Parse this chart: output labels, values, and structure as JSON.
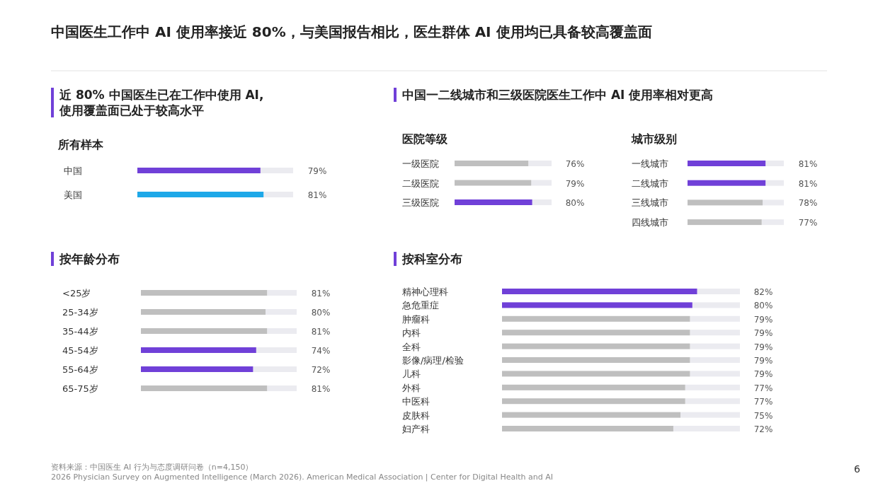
{
  "chart_data": [
    {
      "type": "other",
      "title": "中国医生工作中 AI 使用率接近 80%，与美国报告相比，医生群体 AI 使用均已具备较高覆盖面",
      "annotations": [
        "资料来源：中国医生 AI 行为与态度调研问卷（n=4,150）",
        "2026 Physician Survey on Augmented Intelligence (March 2026). American Medical Association  |  Center for Digital Health and AI",
        "6"
      ]
    },
    {
      "type": "bar",
      "orientation": "horizontal",
      "title": "近 80% 中国医生已在工作中使用 AI,\n使用覆盖面已处于较高水平",
      "subtitle": "所有样本",
      "categories": [
        "中国",
        "美国"
      ],
      "values": [
        79,
        81
      ],
      "colors": [
        "#7040d8",
        "#1ea8e8"
      ],
      "value_labels": [
        "79%",
        "81%"
      ],
      "xlim": [
        0,
        100
      ],
      "tick_labels": "y"
    },
    {
      "type": "bar",
      "orientation": "horizontal",
      "title": "中国一二线城市和三级医院医生工作中 AI 使用率相对更高",
      "subtitle": "医院等级",
      "categories": [
        "一级医院",
        "二级医院",
        "三级医院"
      ],
      "values": [
        76,
        79,
        80
      ],
      "colors": [
        "#bfbfbf",
        "#bfbfbf",
        "#7040d8"
      ],
      "value_labels": [
        "76%",
        "79%",
        "80%"
      ],
      "xlim": [
        0,
        100
      ],
      "tick_labels": "y"
    },
    {
      "type": "bar",
      "orientation": "horizontal",
      "subtitle": "城市级别",
      "categories": [
        "一线城市",
        "二线城市",
        "三线城市",
        "四线城市"
      ],
      "values": [
        81,
        81,
        78,
        77
      ],
      "colors": [
        "#7040d8",
        "#7040d8",
        "#bfbfbf",
        "#bfbfbf"
      ],
      "value_labels": [
        "81%",
        "81%",
        "78%",
        "77%"
      ],
      "xlim": [
        0,
        100
      ],
      "tick_labels": "y"
    },
    {
      "type": "bar",
      "orientation": "horizontal",
      "title": "按年龄分布",
      "categories": [
        "<25岁",
        "25-34岁",
        "35-44岁",
        "45-54岁",
        "55-64岁",
        "65-75岁"
      ],
      "values": [
        81,
        80,
        81,
        74,
        72,
        81
      ],
      "colors": [
        "#bfbfbf",
        "#bfbfbf",
        "#bfbfbf",
        "#7040d8",
        "#7040d8",
        "#bfbfbf"
      ],
      "value_labels": [
        "81%",
        "80%",
        "81%",
        "74%",
        "72%",
        "81%"
      ],
      "xlim": [
        0,
        100
      ],
      "tick_labels": "y"
    },
    {
      "type": "bar",
      "orientation": "horizontal",
      "title": "按科室分布",
      "categories": [
        "精神心理科",
        "急危重症",
        "肿瘤科",
        "内科",
        "全科",
        "影像/病理/检验",
        "儿科",
        "外科",
        "中医科",
        "皮肤科",
        "妇产科"
      ],
      "values": [
        82,
        80,
        79,
        79,
        79,
        79,
        79,
        77,
        77,
        75,
        72
      ],
      "colors": [
        "#7040d8",
        "#7040d8",
        "#bfbfbf",
        "#bfbfbf",
        "#bfbfbf",
        "#bfbfbf",
        "#bfbfbf",
        "#bfbfbf",
        "#bfbfbf",
        "#bfbfbf",
        "#bfbfbf"
      ],
      "value_labels": [
        "82%",
        "80%",
        "79%",
        "79%",
        "79%",
        "79%",
        "79%",
        "77%",
        "77%",
        "75%",
        "72%"
      ],
      "xlim": [
        0,
        100
      ],
      "tick_labels": "y"
    }
  ]
}
